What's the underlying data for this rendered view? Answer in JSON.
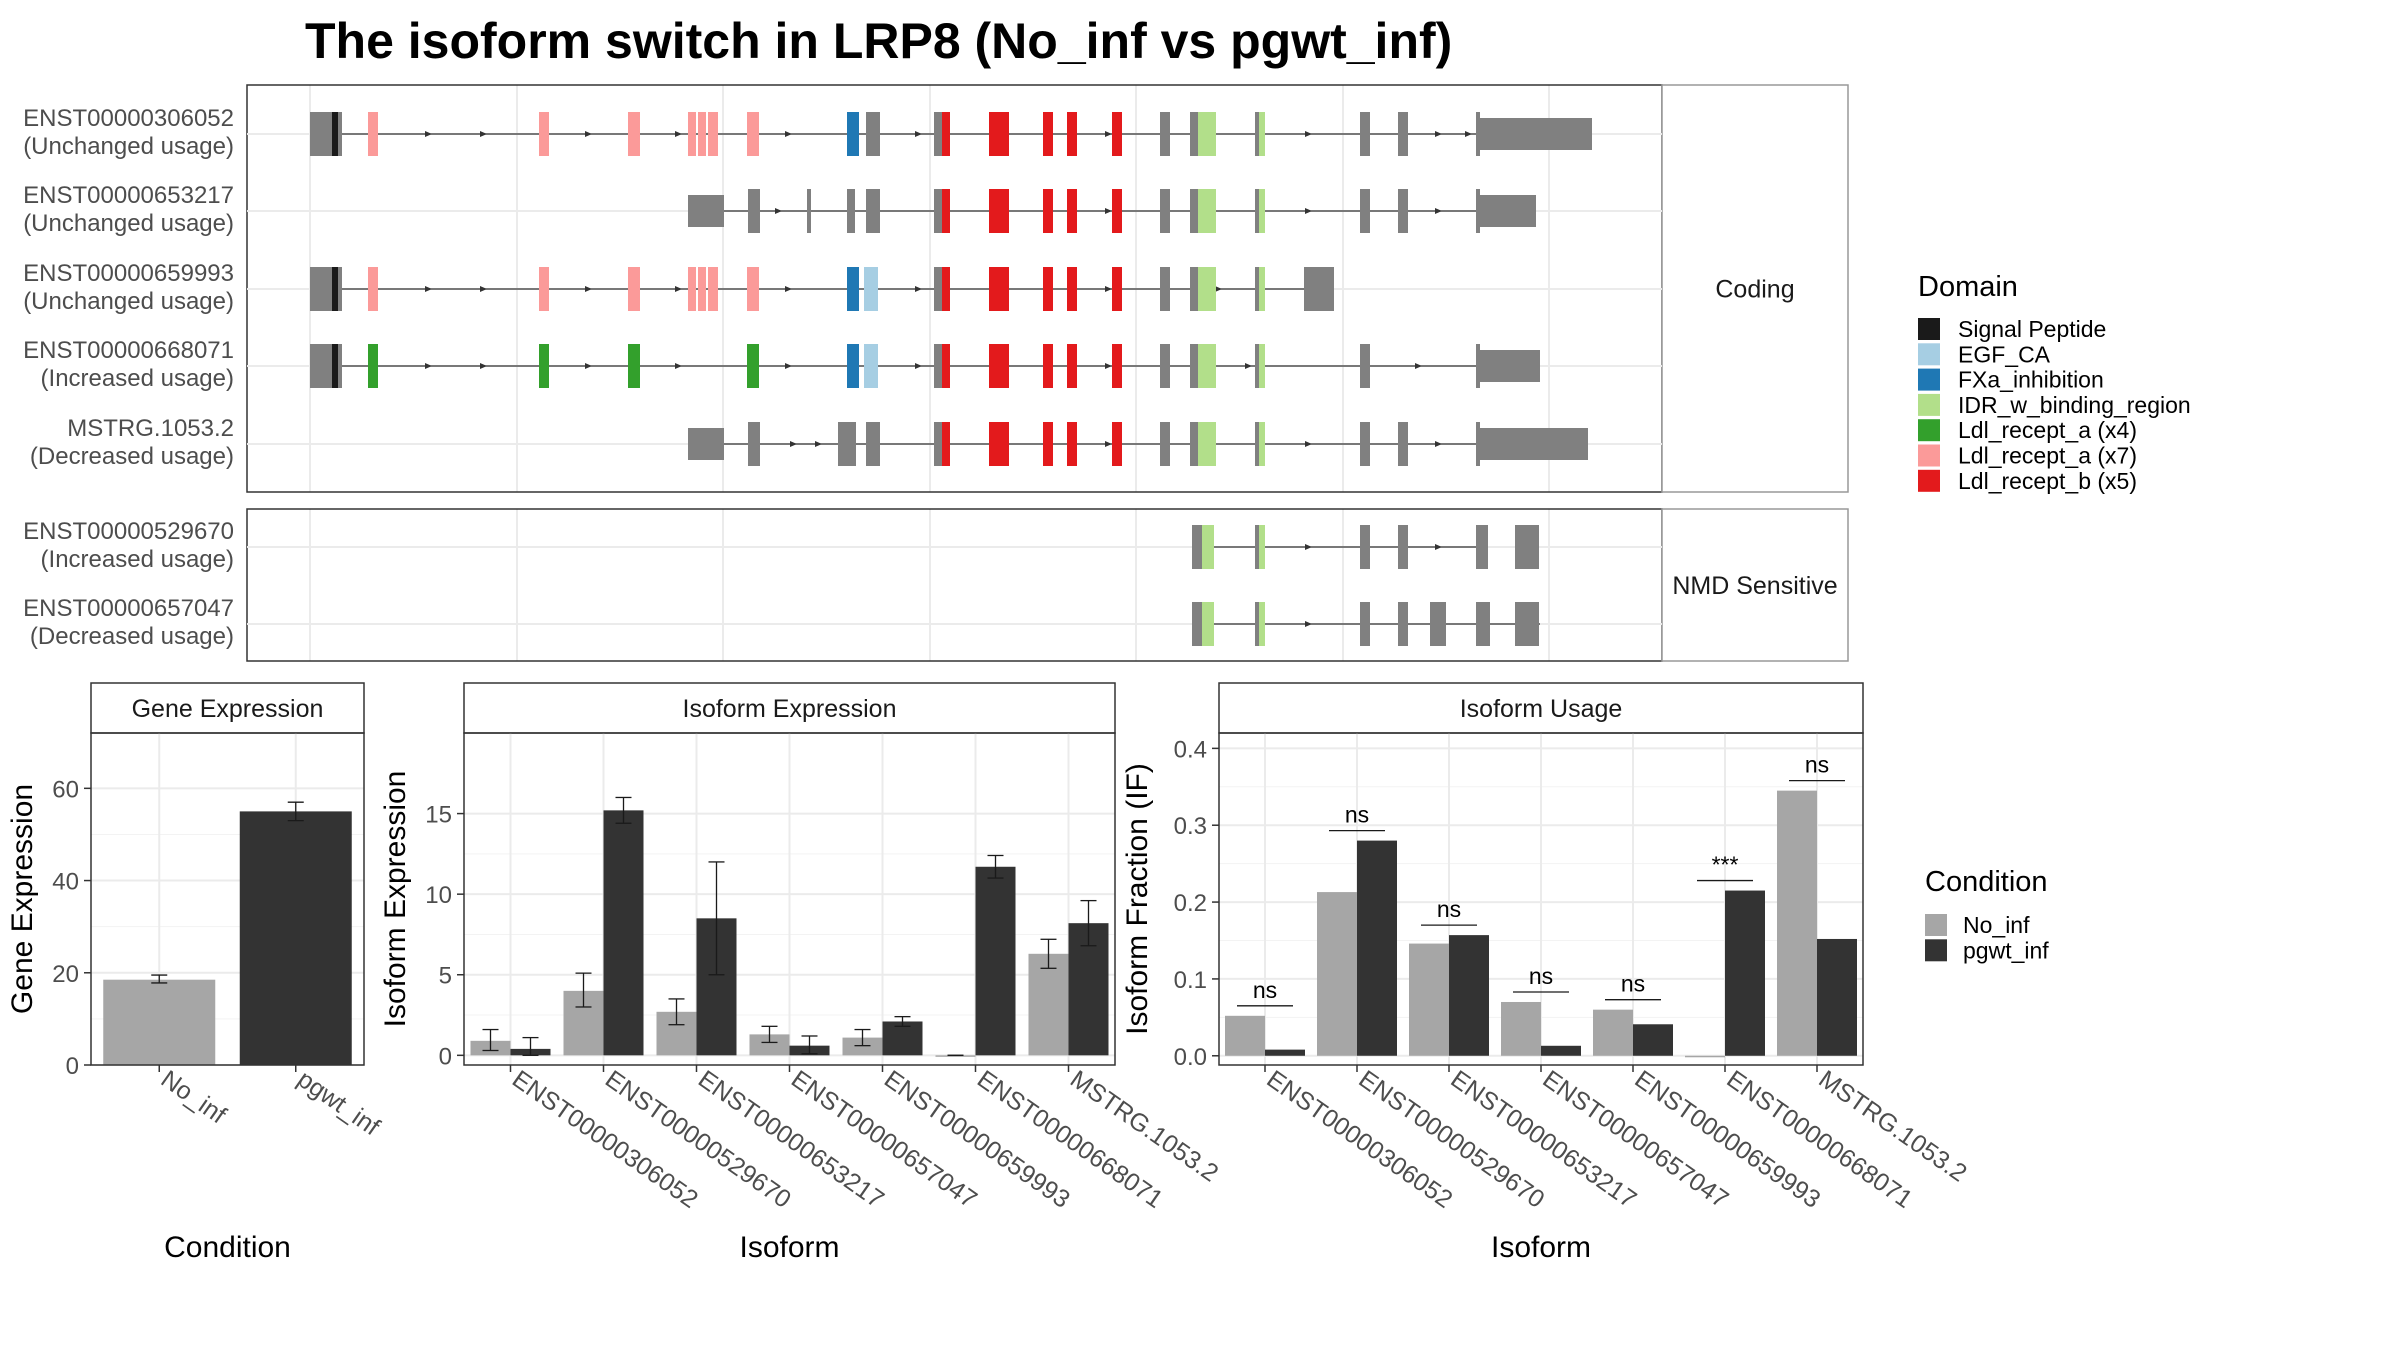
{
  "title": "The isoform switch in LRP8 (No_inf vs pgwt_inf)",
  "colors": {
    "signal_peptide": "#1a1a1a",
    "egf_ca": "#a6cee3",
    "fxa_inhibition": "#1f78b4",
    "idr": "#b2df8a",
    "ldl_a4": "#33a02c",
    "ldl_a7": "#fb9a99",
    "ldl_b5": "#e31a1c",
    "exon": "#808080",
    "no_inf": "#a6a6a6",
    "pgwt_inf": "#333333",
    "grid": "#ebebeb"
  },
  "transcript_panel": {
    "facets": [
      "Coding",
      "NMD Sensitive"
    ],
    "isoforms": [
      {
        "id": "ENST00000306052",
        "usage": "(Unchanged usage)",
        "group": "Coding"
      },
      {
        "id": "ENST00000653217",
        "usage": "(Unchanged usage)",
        "group": "Coding"
      },
      {
        "id": "ENST00000659993",
        "usage": "(Unchanged usage)",
        "group": "Coding"
      },
      {
        "id": "ENST00000668071",
        "usage": "(Increased usage)",
        "group": "Coding"
      },
      {
        "id": "MSTRG.1053.2",
        "usage": "(Decreased usage)",
        "group": "Coding"
      },
      {
        "id": "ENST00000529670",
        "usage": "(Increased usage)",
        "group": "NMD Sensitive"
      },
      {
        "id": "ENST00000657047",
        "usage": "(Decreased usage)",
        "group": "NMD Sensitive"
      }
    ]
  },
  "legend_domain": {
    "title": "Domain",
    "items": [
      {
        "label": "Signal Peptide",
        "key": "signal_peptide"
      },
      {
        "label": "EGF_CA",
        "key": "egf_ca"
      },
      {
        "label": "FXa_inhibition",
        "key": "fxa_inhibition"
      },
      {
        "label": "IDR_w_binding_region",
        "key": "idr"
      },
      {
        "label": "Ldl_recept_a (x4)",
        "key": "ldl_a4"
      },
      {
        "label": "Ldl_recept_a (x7)",
        "key": "ldl_a7"
      },
      {
        "label": "Ldl_recept_b (x5)",
        "key": "ldl_b5"
      }
    ]
  },
  "legend_condition": {
    "title": "Condition",
    "items": [
      {
        "label": "No_inf",
        "key": "no_inf"
      },
      {
        "label": "pgwt_inf",
        "key": "pgwt_inf"
      }
    ]
  },
  "chart_data": [
    {
      "type": "bar",
      "title": "Gene Expression",
      "xlabel": "Condition",
      "ylabel": "Gene Expression",
      "categories": [
        "No_inf",
        "pgwt_inf"
      ],
      "values": [
        18.5,
        55
      ],
      "errors": [
        [
          17.8,
          19.5
        ],
        [
          53,
          57
        ]
      ],
      "ylim": [
        0,
        72
      ],
      "yticks": [
        0,
        20,
        40,
        60
      ]
    },
    {
      "type": "bar",
      "title": "Isoform Expression",
      "xlabel": "Isoform",
      "ylabel": "Isoform Expression",
      "categories": [
        "ENST00000306052",
        "ENST00000529670",
        "ENST00000653217",
        "ENST00000657047",
        "ENST00000659993",
        "ENST00000668071",
        "MSTRG.1053.2"
      ],
      "series": [
        {
          "name": "No_inf",
          "values": [
            0.9,
            4.0,
            2.7,
            1.3,
            1.1,
            0.0,
            6.3
          ],
          "errors": [
            [
              0.3,
              1.6
            ],
            [
              3.0,
              5.1
            ],
            [
              1.9,
              3.5
            ],
            [
              0.8,
              1.8
            ],
            [
              0.6,
              1.6
            ],
            [
              0.0,
              0.0
            ],
            [
              5.4,
              7.2
            ]
          ]
        },
        {
          "name": "pgwt_inf",
          "values": [
            0.4,
            15.2,
            8.5,
            0.6,
            2.1,
            11.7,
            8.2
          ],
          "errors": [
            [
              0.0,
              1.1
            ],
            [
              14.4,
              16.0
            ],
            [
              5.0,
              12.0
            ],
            [
              0.1,
              1.2
            ],
            [
              1.8,
              2.4
            ],
            [
              11.0,
              12.4
            ],
            [
              6.8,
              9.6
            ]
          ]
        }
      ],
      "ylim": [
        -0.6,
        20
      ],
      "yticks": [
        0,
        5,
        10,
        15
      ]
    },
    {
      "type": "bar",
      "title": "Isoform Usage",
      "xlabel": "Isoform",
      "ylabel": "Isoform Fraction (IF)",
      "categories": [
        "ENST00000306052",
        "ENST00000529670",
        "ENST00000653217",
        "ENST00000657047",
        "ENST00000659993",
        "ENST00000668071",
        "MSTRG.1053.2"
      ],
      "series": [
        {
          "name": "No_inf",
          "values": [
            0.052,
            0.213,
            0.146,
            0.07,
            0.06,
            0.0,
            0.345
          ]
        },
        {
          "name": "pgwt_inf",
          "values": [
            0.008,
            0.28,
            0.157,
            0.013,
            0.041,
            0.215,
            0.152
          ]
        }
      ],
      "significance": [
        "ns",
        "ns",
        "ns",
        "ns",
        "ns",
        "***",
        "ns"
      ],
      "ylim": [
        -0.012,
        0.42
      ],
      "yticks": [
        0.0,
        0.1,
        0.2,
        0.3,
        0.4
      ]
    }
  ]
}
